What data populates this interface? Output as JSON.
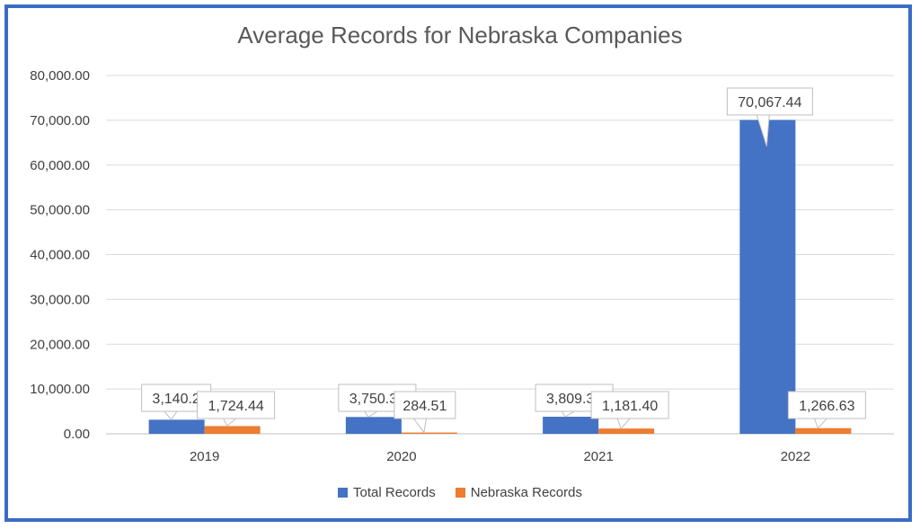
{
  "chart_data": {
    "type": "bar",
    "title": "Average Records for Nebraska Companies",
    "xlabel": "",
    "ylabel": "",
    "categories": [
      "2019",
      "2020",
      "2021",
      "2022"
    ],
    "series": [
      {
        "name": "Total Records",
        "color": "#4472c4",
        "values": [
          3140.2,
          3750.31,
          3809.31,
          70067.44
        ],
        "labels": [
          "3,140.2",
          "3,750.31",
          "3,809.31",
          "70,067.44"
        ]
      },
      {
        "name": "Nebraska Records",
        "color": "#ed7d31",
        "values": [
          1724.44,
          284.51,
          1181.4,
          1266.63
        ],
        "labels": [
          "1,724.44",
          "284.51",
          "1,181.40",
          "1,266.63"
        ]
      }
    ],
    "ylim": [
      0,
      80000
    ],
    "yticks": [
      0,
      10000,
      20000,
      30000,
      40000,
      50000,
      60000,
      70000,
      80000
    ],
    "ytick_labels": [
      "0.00",
      "10,000.00",
      "20,000.00",
      "30,000.00",
      "40,000.00",
      "50,000.00",
      "60,000.00",
      "70,000.00",
      "80,000.00"
    ],
    "grid": true,
    "legend": "bottom"
  }
}
